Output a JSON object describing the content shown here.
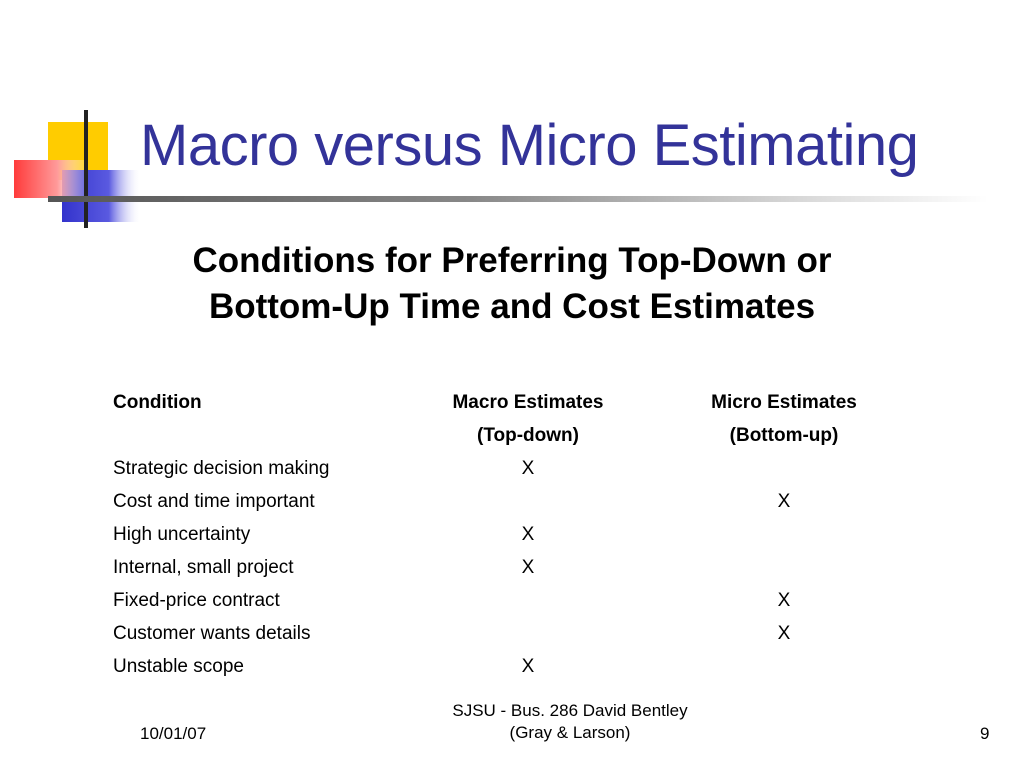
{
  "slide": {
    "title": "Macro versus Micro Estimating",
    "subtitle_line1": "Conditions for Preferring Top-Down or",
    "subtitle_line2": "Bottom-Up Time and Cost Estimates"
  },
  "table": {
    "headers": {
      "condition": "Condition",
      "macro_line1": "Macro Estimates",
      "macro_line2": "(Top-down)",
      "micro_line1": "Micro Estimates",
      "micro_line2": "(Bottom-up)"
    },
    "rows": [
      {
        "condition": "Strategic decision making",
        "macro": "X",
        "micro": ""
      },
      {
        "condition": "Cost and time important",
        "macro": "",
        "micro": "X"
      },
      {
        "condition": "High uncertainty",
        "macro": "X",
        "micro": ""
      },
      {
        "condition": "Internal, small project",
        "macro": "X",
        "micro": ""
      },
      {
        "condition": "Fixed-price contract",
        "macro": "",
        "micro": "X"
      },
      {
        "condition": "Customer wants details",
        "macro": "",
        "micro": "X"
      },
      {
        "condition": "Unstable scope",
        "macro": "X",
        "micro": ""
      }
    ]
  },
  "footer": {
    "date": "10/01/07",
    "center_line1": "SJSU - Bus. 286 David Bentley",
    "center_line2": "(Gray & Larson)",
    "page_number": "9"
  },
  "colors": {
    "title": "#333399",
    "deco_yellow": "#ffcc00",
    "deco_blue": "#3333cc",
    "deco_red": "#ff5555"
  }
}
